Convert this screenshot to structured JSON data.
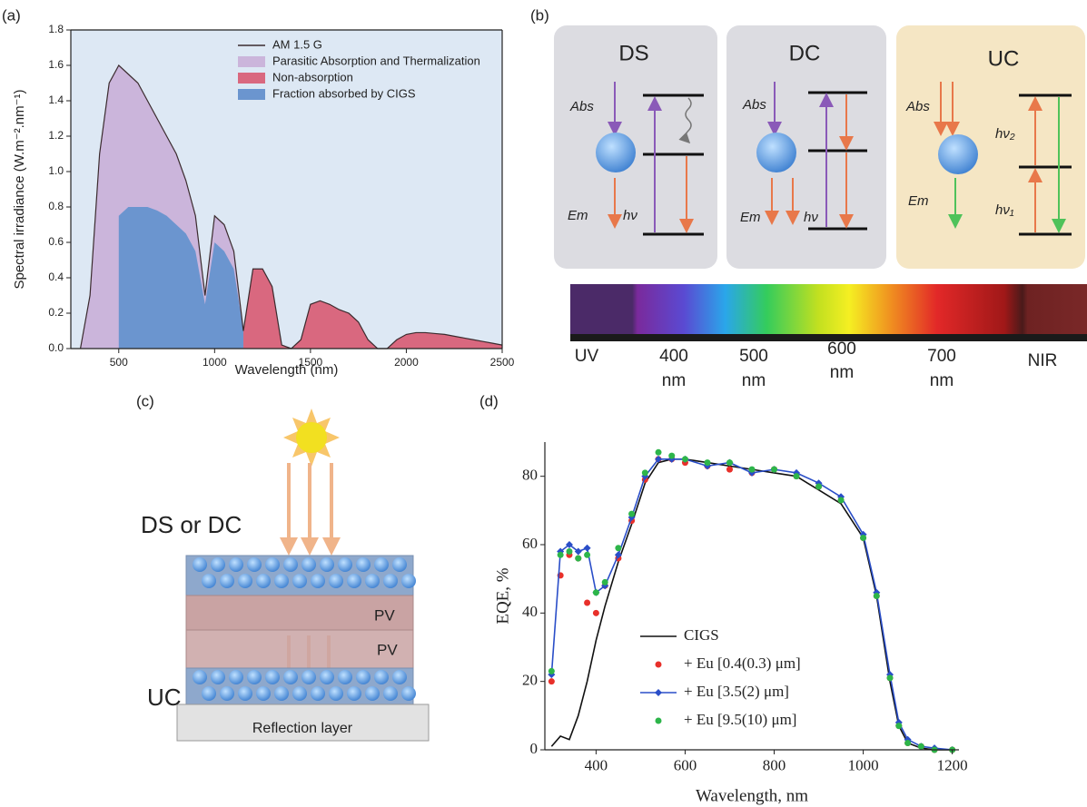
{
  "chart_data": [
    {
      "type": "area",
      "panel": "(a)",
      "x_label": "Wavelength (nm)",
      "y_label": "Spectral irradiance (W.m⁻².nm⁻¹)",
      "x": [
        300,
        350,
        400,
        450,
        500,
        550,
        600,
        650,
        700,
        750,
        800,
        850,
        900,
        950,
        1000,
        1050,
        1100,
        1150,
        1200,
        1250,
        1300,
        1350,
        1400,
        1450,
        1500,
        1550,
        1600,
        1650,
        1700,
        1750,
        1800,
        1850,
        1900,
        1950,
        2000,
        2050,
        2100,
        2150,
        2200,
        2250,
        2300,
        2350,
        2400,
        2450,
        2500
      ],
      "series": [
        {
          "name": "Parasitic Absorption and Thermalization",
          "style": "area",
          "color": "#cbb5db",
          "values": [
            0,
            0.3,
            1.1,
            1.5,
            1.6,
            1.55,
            1.5,
            1.4,
            1.3,
            1.2,
            1.1,
            0.95,
            0.75,
            0.3,
            0.75,
            0.7,
            0.55,
            0.1,
            null,
            null,
            null,
            null,
            null,
            null,
            null,
            null,
            null,
            null,
            null,
            null,
            null,
            null,
            null,
            null,
            null,
            null,
            null,
            null,
            null,
            null,
            null,
            null,
            null,
            null,
            null
          ]
        },
        {
          "name": "Non-absorption",
          "style": "area",
          "color": "#d9687f",
          "values": [
            null,
            null,
            null,
            null,
            null,
            null,
            null,
            null,
            null,
            null,
            null,
            null,
            null,
            null,
            null,
            null,
            null,
            0.1,
            0.45,
            0.45,
            0.35,
            0.02,
            0,
            0.05,
            0.25,
            0.27,
            0.25,
            0.22,
            0.2,
            0.15,
            0.05,
            0,
            0,
            0.05,
            0.08,
            0.09,
            0.09,
            0.085,
            0.08,
            0.07,
            0.06,
            0.05,
            0.04,
            0.03,
            0.02
          ]
        },
        {
          "name": "Fraction absorbed by CIGS",
          "style": "area",
          "color": "#6b95cf",
          "values": [
            null,
            null,
            null,
            null,
            0.75,
            0.8,
            0.8,
            0.8,
            0.78,
            0.75,
            0.7,
            0.65,
            0.55,
            0.25,
            0.6,
            0.55,
            0.45,
            0.1,
            null,
            null,
            null,
            null,
            null,
            null,
            null,
            null,
            null,
            null,
            null,
            null,
            null,
            null,
            null,
            null,
            null,
            null,
            null,
            null,
            null,
            null,
            null,
            null,
            null,
            null,
            null
          ]
        },
        {
          "name": "AM 1.5 G",
          "style": "line",
          "color": "#3b2b2e",
          "values": [
            0,
            0.3,
            1.1,
            1.5,
            1.6,
            1.55,
            1.5,
            1.4,
            1.3,
            1.2,
            1.1,
            0.95,
            0.75,
            0.3,
            0.75,
            0.7,
            0.55,
            0.1,
            0.45,
            0.45,
            0.35,
            0.02,
            0,
            0.05,
            0.25,
            0.27,
            0.25,
            0.22,
            0.2,
            0.15,
            0.05,
            0,
            0,
            0.05,
            0.08,
            0.09,
            0.09,
            0.085,
            0.08,
            0.07,
            0.06,
            0.05,
            0.04,
            0.03,
            0.02
          ]
        }
      ],
      "legend_order": [
        3,
        0,
        1,
        2
      ],
      "xlim": [
        250,
        2500
      ],
      "xticks": [
        500,
        1000,
        1500,
        2000,
        2500
      ],
      "ylim": [
        0,
        1.8
      ],
      "yticks": [
        {
          "value": 0,
          "label": "0.0"
        },
        0.2,
        0.4,
        0.6,
        0.8,
        {
          "value": 1,
          "label": "1.0"
        },
        1.2,
        1.4,
        1.6,
        1.8
      ],
      "background": "#dde8f4",
      "frame": true
    },
    {
      "type": "line",
      "panel": "(d)",
      "x_label": "Wavelength, nm",
      "y_label": "EQE, %",
      "x": [
        300,
        320,
        340,
        360,
        380,
        400,
        420,
        450,
        480,
        510,
        540,
        570,
        600,
        650,
        700,
        750,
        800,
        850,
        900,
        950,
        1000,
        1030,
        1060,
        1080,
        1100,
        1130,
        1160,
        1200
      ],
      "series": [
        {
          "name": "CIGS",
          "style": "line",
          "color": "#111111",
          "values": [
            1,
            4,
            3,
            10,
            20,
            32,
            42,
            55,
            66,
            78,
            84,
            85,
            85,
            84,
            83,
            82,
            81,
            80,
            76,
            72,
            62,
            45,
            20,
            7,
            2,
            0.5,
            0,
            0
          ]
        },
        {
          "name": "+ Eu [0.4(0.3) μm]",
          "style": "markers",
          "marker": "circle",
          "color": "#e8302a",
          "values": [
            20,
            51,
            57,
            56,
            43,
            40,
            48,
            56,
            67,
            79,
            85,
            85,
            84,
            83,
            82,
            81,
            82,
            80,
            77,
            73,
            62,
            45,
            21,
            7,
            2,
            1,
            0,
            0
          ]
        },
        {
          "name": "+ Eu [3.5(2) μm]",
          "style": "line+markers",
          "marker": "diamond",
          "color": "#2a4ec8",
          "values": [
            22,
            58,
            60,
            58,
            59,
            46,
            48,
            57,
            68,
            80,
            85,
            85,
            85,
            83,
            84,
            81,
            82,
            81,
            78,
            74,
            63,
            46,
            22,
            8,
            3,
            1,
            0.5,
            0
          ]
        },
        {
          "name": "+ Eu [9.5(10) μm]",
          "style": "markers",
          "marker": "circle",
          "color": "#2db54a",
          "values": [
            23,
            57,
            58,
            56,
            57,
            46,
            49,
            59,
            69,
            81,
            87,
            86,
            85,
            84,
            84,
            82,
            82,
            80,
            77,
            73,
            62,
            45,
            21,
            7,
            2,
            1,
            0,
            0
          ]
        }
      ],
      "legend_order": [
        0,
        1,
        2,
        3
      ],
      "xlim": [
        285,
        1215
      ],
      "xticks": [
        400,
        600,
        800,
        1000,
        1200
      ],
      "ylim": [
        0,
        90
      ],
      "yticks": [
        0,
        20,
        40,
        60,
        80
      ],
      "background": "#ffffff",
      "frame": false
    }
  ],
  "diagrams": {
    "b": {
      "panel": "(b)",
      "boxes": [
        {
          "title": "DS",
          "abs": "Abs",
          "em": "Em",
          "hv": "hν"
        },
        {
          "title": "DC",
          "abs": "Abs",
          "em": "Em",
          "hv": "hν"
        },
        {
          "title": "UC",
          "abs": "Abs",
          "em": "Em",
          "hv_upper": "hν₂",
          "hv_lower": "hν₁"
        }
      ],
      "spectrum_labels": [
        [
          "UV"
        ],
        [
          "400",
          "nm"
        ],
        [
          "500",
          "nm"
        ],
        [
          "600",
          "nm"
        ],
        [
          "700",
          "nm"
        ],
        [
          "NIR"
        ]
      ]
    },
    "c": {
      "panel": "(c)",
      "top_label": "DS or DC",
      "top_layer": "PV",
      "bottom_label": "UC",
      "bottom_layer": "PV",
      "reflection": "Reflection layer"
    }
  }
}
